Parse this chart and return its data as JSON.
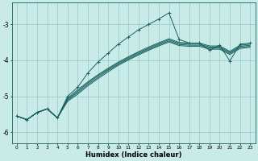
{
  "xlabel": "Humidex (Indice chaleur)",
  "background_color": "#c8ebe8",
  "grid_color": "#a0cccc",
  "line_color": "#1a6060",
  "xlim": [
    -0.5,
    23.5
  ],
  "ylim": [
    -6.3,
    -2.4
  ],
  "yticks": [
    -6,
    -5,
    -4,
    -3
  ],
  "xticks": [
    0,
    1,
    2,
    3,
    4,
    5,
    6,
    7,
    8,
    9,
    10,
    11,
    12,
    13,
    14,
    15,
    16,
    17,
    18,
    19,
    20,
    21,
    22,
    23
  ],
  "line1_x": [
    0,
    1,
    2,
    3,
    4,
    5,
    6,
    7,
    8,
    9,
    10,
    11,
    12,
    13,
    14,
    15,
    16,
    17,
    18,
    19,
    20,
    21,
    22,
    23
  ],
  "line1_y": [
    -5.55,
    -5.65,
    -5.45,
    -5.35,
    -5.6,
    -5.0,
    -4.75,
    -4.35,
    -4.05,
    -3.8,
    -3.55,
    -3.35,
    -3.15,
    -3.0,
    -2.85,
    -2.68,
    -3.42,
    -3.52,
    -3.52,
    -3.72,
    -3.58,
    -4.02,
    -3.55,
    -3.52
  ],
  "line2_x": [
    0,
    1,
    2,
    3,
    4,
    5,
    6,
    7,
    8,
    9,
    10,
    11,
    12,
    13,
    14,
    15,
    16,
    17,
    18,
    19,
    20,
    21,
    22,
    23
  ],
  "line2_y": [
    -5.55,
    -5.65,
    -5.45,
    -5.35,
    -5.6,
    -5.05,
    -4.82,
    -4.6,
    -4.4,
    -4.22,
    -4.05,
    -3.9,
    -3.76,
    -3.63,
    -3.51,
    -3.4,
    -3.5,
    -3.52,
    -3.52,
    -3.6,
    -3.6,
    -3.75,
    -3.58,
    -3.55
  ],
  "line3_x": [
    0,
    1,
    2,
    3,
    4,
    5,
    6,
    7,
    8,
    9,
    10,
    11,
    12,
    13,
    14,
    15,
    16,
    17,
    18,
    19,
    20,
    21,
    22,
    23
  ],
  "line3_y": [
    -5.55,
    -5.65,
    -5.45,
    -5.35,
    -5.6,
    -5.08,
    -4.86,
    -4.63,
    -4.43,
    -4.25,
    -4.08,
    -3.93,
    -3.79,
    -3.66,
    -3.54,
    -3.43,
    -3.53,
    -3.55,
    -3.55,
    -3.63,
    -3.63,
    -3.78,
    -3.61,
    -3.58
  ],
  "line4_x": [
    0,
    1,
    2,
    3,
    4,
    5,
    6,
    7,
    8,
    9,
    10,
    11,
    12,
    13,
    14,
    15,
    16,
    17,
    18,
    19,
    20,
    21,
    22,
    23
  ],
  "line4_y": [
    -5.55,
    -5.65,
    -5.45,
    -5.35,
    -5.6,
    -5.11,
    -4.9,
    -4.67,
    -4.47,
    -4.28,
    -4.11,
    -3.96,
    -3.82,
    -3.69,
    -3.57,
    -3.46,
    -3.56,
    -3.58,
    -3.58,
    -3.66,
    -3.66,
    -3.81,
    -3.64,
    -3.61
  ],
  "line5_x": [
    0,
    1,
    2,
    3,
    4,
    5,
    6,
    7,
    8,
    9,
    10,
    11,
    12,
    13,
    14,
    15,
    16,
    17,
    18,
    19,
    20,
    21,
    22,
    23
  ],
  "line5_y": [
    -5.55,
    -5.65,
    -5.45,
    -5.35,
    -5.6,
    -5.14,
    -4.94,
    -4.71,
    -4.51,
    -4.32,
    -4.14,
    -3.99,
    -3.85,
    -3.72,
    -3.6,
    -3.49,
    -3.59,
    -3.61,
    -3.61,
    -3.69,
    -3.69,
    -3.84,
    -3.67,
    -3.64
  ]
}
